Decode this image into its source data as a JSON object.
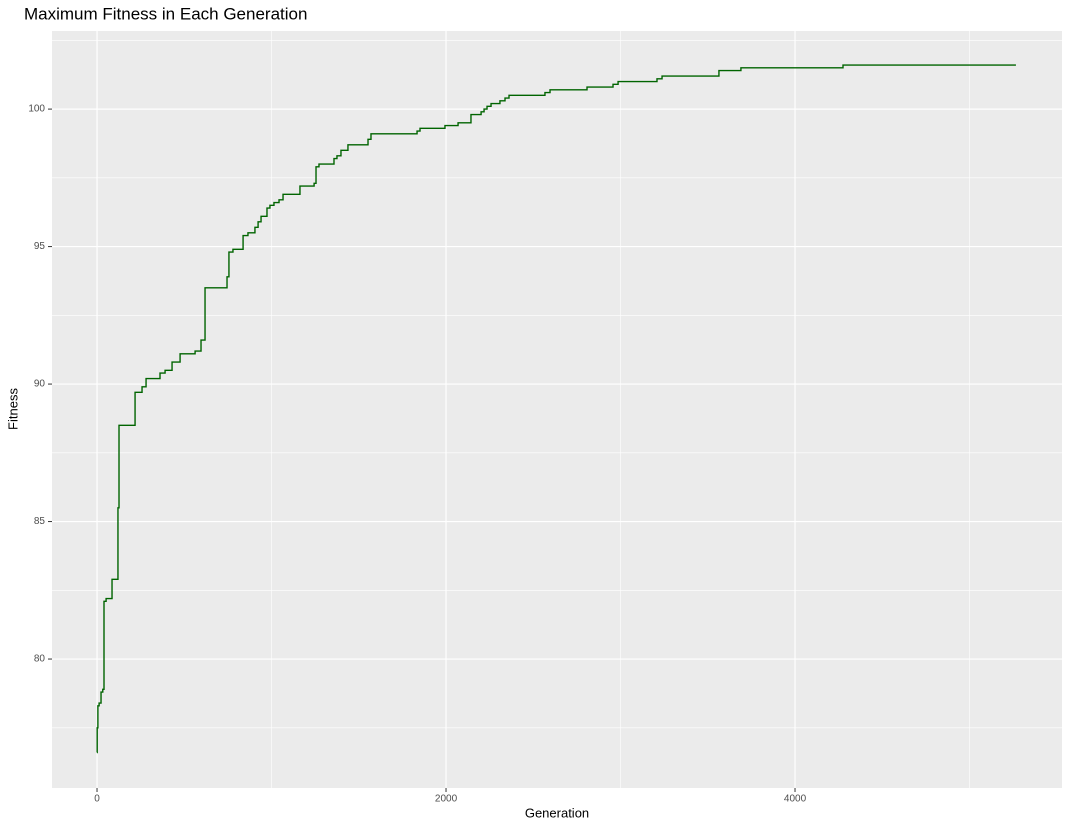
{
  "chart_data": {
    "type": "line",
    "title": "Maximum Fitness in Each Generation",
    "xlabel": "Generation",
    "ylabel": "Fitness",
    "step": "hv",
    "grid": true,
    "xlim": [
      -258,
      5530
    ],
    "ylim": [
      75.31,
      102.84
    ],
    "xticks": [
      0,
      2000,
      4000
    ],
    "yticks": [
      80,
      85,
      90,
      95,
      100
    ],
    "xminor": [
      1000,
      3000,
      5000
    ],
    "yminor": [
      77.5,
      82.5,
      87.5,
      92.5,
      97.5,
      102.5
    ],
    "x": [
      0,
      1,
      5,
      12,
      23,
      33,
      40,
      52,
      86,
      120,
      126,
      218,
      258,
      281,
      361,
      390,
      430,
      476,
      562,
      596,
      619,
      745,
      756,
      779,
      837,
      865,
      905,
      923,
      940,
      974,
      991,
      1014,
      1043,
      1066,
      1163,
      1244,
      1255,
      1272,
      1358,
      1375,
      1398,
      1438,
      1553,
      1570,
      1834,
      1851,
      1994,
      2069,
      2143,
      2201,
      2218,
      2235,
      2258,
      2309,
      2338,
      2361,
      2567,
      2596,
      2808,
      2957,
      2986,
      3209,
      3238,
      3564,
      3690,
      4275,
      5266
    ],
    "series": [
      {
        "name": "Fitness",
        "color": "#006400",
        "values": [
          76.6,
          77.5,
          78.3,
          78.4,
          78.8,
          78.9,
          82.1,
          82.2,
          82.9,
          85.5,
          88.5,
          89.7,
          89.9,
          90.2,
          90.4,
          90.5,
          90.8,
          91.1,
          91.2,
          91.6,
          93.5,
          93.9,
          94.8,
          94.9,
          95.4,
          95.5,
          95.7,
          95.9,
          96.1,
          96.4,
          96.5,
          96.6,
          96.7,
          96.9,
          97.2,
          97.3,
          97.9,
          98.0,
          98.2,
          98.3,
          98.5,
          98.7,
          98.9,
          99.1,
          99.2,
          99.3,
          99.4,
          99.5,
          99.8,
          99.9,
          100.0,
          100.1,
          100.2,
          100.3,
          100.4,
          100.5,
          100.6,
          100.7,
          100.8,
          100.9,
          101.0,
          101.1,
          101.2,
          101.4,
          101.5,
          101.6,
          101.6
        ]
      }
    ]
  }
}
